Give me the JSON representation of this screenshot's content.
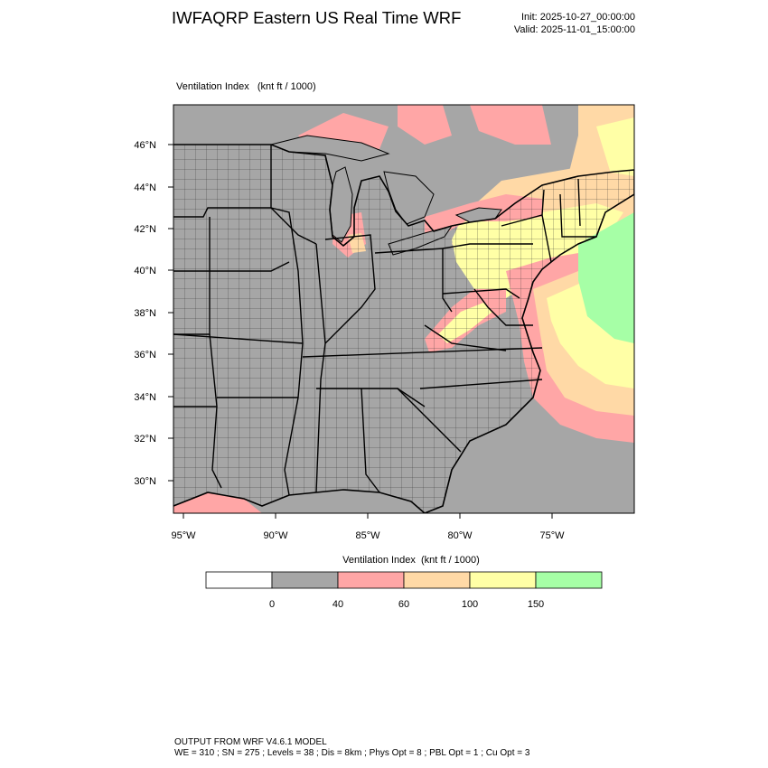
{
  "header": {
    "title": "IWFAQRP Eastern US Real Time WRF",
    "init": "Init: 2025-10-27_00:00:00",
    "valid": "Valid: 2025-11-01_15:00:00"
  },
  "map": {
    "subtitle": "Ventilation Index   (knt ft / 1000)",
    "lat_labels": [
      "46°N",
      "44°N",
      "42°N",
      "40°N",
      "38°N",
      "36°N",
      "34°N",
      "32°N",
      "30°N"
    ],
    "lon_labels": [
      "95°W",
      "90°W",
      "85°W",
      "80°W",
      "75°W"
    ]
  },
  "colorbar": {
    "title": "Ventilation Index  (knt ft / 1000)",
    "colors": [
      "#ffffff",
      "#a6a6a6",
      "#ffa6a6",
      "#ffd9a6",
      "#ffffa6",
      "#a6ffa6"
    ],
    "labels": [
      "0",
      "40",
      "60",
      "100",
      "150"
    ]
  },
  "footer": {
    "line1": "OUTPUT FROM WRF V4.6.1 MODEL",
    "line2": "WE = 310 ; SN = 275 ; Levels = 38 ; Dis = 8km ; Phys Opt = 8 ; PBL Opt = 1 ; Cu Opt = 3"
  }
}
